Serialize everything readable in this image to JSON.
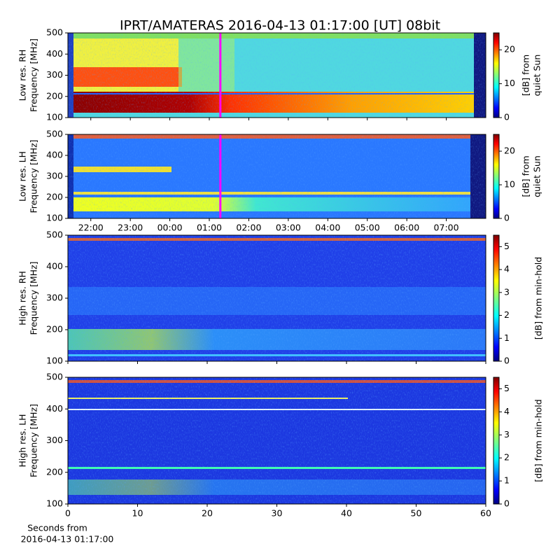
{
  "chart_data": [
    {
      "type": "heatmap",
      "title": "IPRT/AMATERAS 2016-04-13 01:17:00 [UT]   08bit",
      "ylabel": [
        "Low res. RH",
        "Frequency [MHz]"
      ],
      "ylim": [
        100,
        500
      ],
      "yticks": [
        100,
        200,
        300,
        400,
        500
      ],
      "xlim": [
        0.42,
        11.0
      ],
      "marker_x": 4.28,
      "marker_color": "#ff00ff",
      "colorbar": {
        "label": [
          "[dB] from",
          "quiet Sun"
        ],
        "lim": [
          0,
          25
        ],
        "ticks": [
          0,
          10,
          20
        ]
      }
    },
    {
      "type": "heatmap",
      "ylabel": [
        "Low res. LH",
        "Frequency [MHz]"
      ],
      "ylim": [
        100,
        500
      ],
      "yticks": [
        100,
        200,
        300,
        400,
        500
      ],
      "xlim": [
        0.42,
        11.0
      ],
      "xticks": [
        {
          "value": 1,
          "label": "22:00"
        },
        {
          "value": 2,
          "label": "23:00"
        },
        {
          "value": 3,
          "label": "00:00"
        },
        {
          "value": 4,
          "label": "01:00"
        },
        {
          "value": 5,
          "label": "02:00"
        },
        {
          "value": 6,
          "label": "03:00"
        },
        {
          "value": 7,
          "label": "04:00"
        },
        {
          "value": 8,
          "label": "05:00"
        },
        {
          "value": 9,
          "label": "06:00"
        },
        {
          "value": 10,
          "label": "07:00"
        }
      ],
      "colorbar": {
        "label": [
          "[dB] from",
          "quiet Sun"
        ],
        "lim": [
          0,
          25
        ],
        "ticks": [
          0,
          10,
          20
        ]
      }
    },
    {
      "type": "heatmap",
      "ylabel": [
        "High res. RH",
        "Frequency [MHz]"
      ],
      "ylim": [
        100,
        500
      ],
      "yticks": [
        100,
        200,
        300,
        400,
        500
      ],
      "xlim": [
        0,
        60
      ],
      "colorbar": {
        "label": [
          "[dB] from min-hold"
        ],
        "lim": [
          0,
          5.5
        ],
        "ticks": [
          0,
          1,
          2,
          3,
          4,
          5
        ]
      }
    },
    {
      "type": "heatmap",
      "ylabel": [
        "High res. LH",
        "Frequency [MHz]"
      ],
      "ylim": [
        100,
        500
      ],
      "yticks": [
        100,
        200,
        300,
        400,
        500
      ],
      "xlim": [
        0,
        60
      ],
      "xticks": [
        0,
        10,
        20,
        30,
        40,
        50,
        60
      ],
      "xlabel": [
        "Seconds from",
        "2016-04-13 01:17:00"
      ],
      "colorbar": {
        "label": [
          "[dB] from min-hold"
        ],
        "lim": [
          0,
          5.5
        ],
        "ticks": [
          0,
          1,
          2,
          3,
          4,
          5
        ]
      }
    }
  ]
}
